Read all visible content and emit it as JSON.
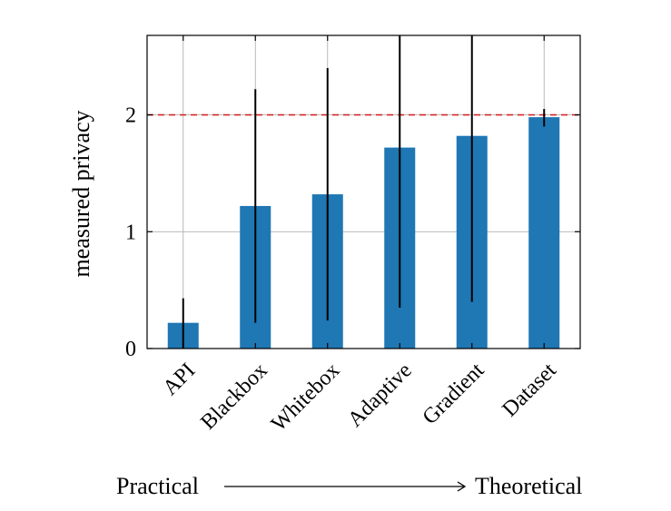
{
  "chart_data": {
    "type": "bar",
    "categories": [
      "API",
      "Blackbox",
      "Whitebox",
      "Adaptive",
      "Gradient",
      "Dataset"
    ],
    "values": [
      0.22,
      1.22,
      1.32,
      1.72,
      1.82,
      1.98
    ],
    "error_low": [
      0.0,
      0.22,
      0.24,
      0.35,
      0.4,
      1.9
    ],
    "error_high": [
      0.43,
      2.22,
      2.4,
      2.75,
      2.75,
      2.05
    ],
    "reference_line": 2,
    "ylabel": "measured privacy",
    "xlabel": "",
    "ylim": [
      0,
      2.68
    ],
    "yticks": [
      0,
      1,
      2
    ],
    "grid": true,
    "bar_color": "#1f77b4",
    "reference_color": "#d62728"
  },
  "footer": {
    "left_label": "Practical",
    "right_label": "Theoretical"
  }
}
